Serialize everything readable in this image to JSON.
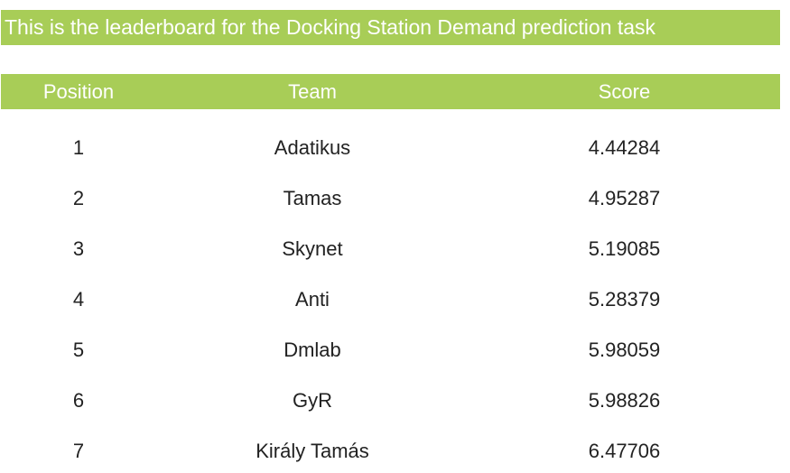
{
  "title": "This is the leaderboard for the Docking Station Demand prediction task",
  "table": {
    "headers": {
      "position": "Position",
      "team": "Team",
      "score": "Score"
    },
    "rows": [
      {
        "position": "1",
        "team": "Adatikus",
        "score": "4.44284"
      },
      {
        "position": "2",
        "team": "Tamas",
        "score": "4.95287"
      },
      {
        "position": "3",
        "team": "Skynet",
        "score": "5.19085"
      },
      {
        "position": "4",
        "team": "Anti",
        "score": "5.28379"
      },
      {
        "position": "5",
        "team": "Dmlab",
        "score": "5.98059"
      },
      {
        "position": "6",
        "team": "GyR",
        "score": "5.98826"
      },
      {
        "position": "7",
        "team": "Király Tamás",
        "score": "6.47706"
      }
    ]
  },
  "colors": {
    "accent": "#a8cd57",
    "header_text": "#ffffff",
    "body_text": "#222222"
  }
}
